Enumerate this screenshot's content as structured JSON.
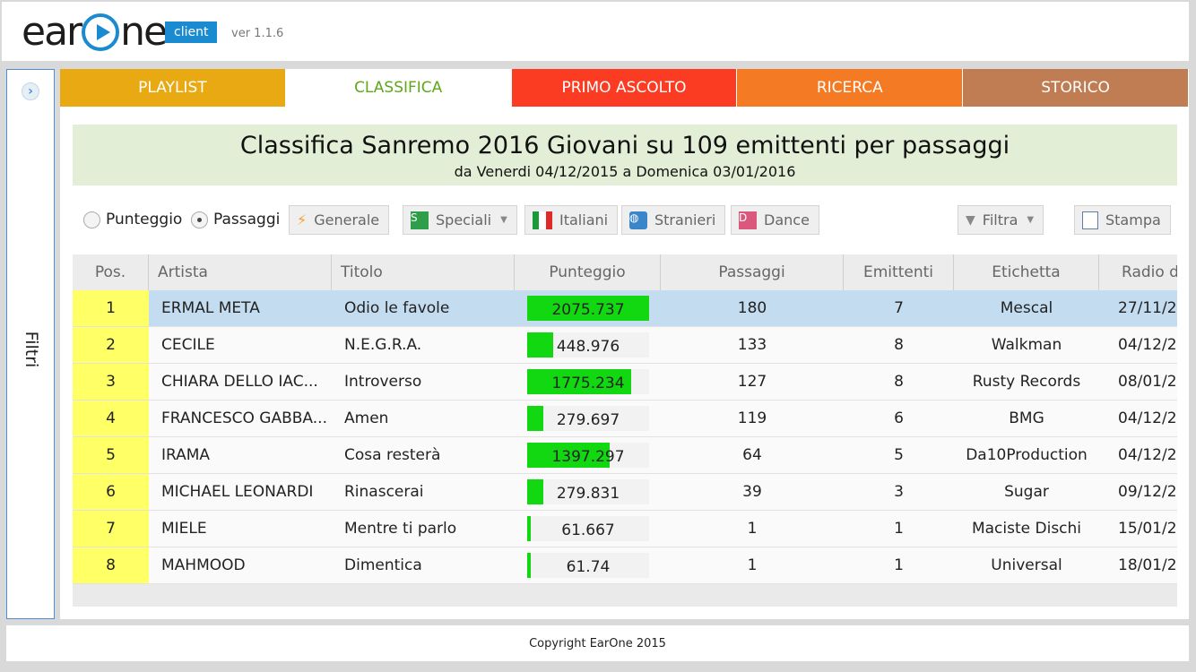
{
  "header": {
    "logo_left": "ear",
    "logo_right": "ne",
    "logo_badge": "client",
    "version": "ver 1.1.6"
  },
  "sidebar": {
    "label": "Filtri",
    "toggle_icon": "chevron-right-icon"
  },
  "tabs": [
    {
      "label": "PLAYLIST",
      "color": "#e8a912"
    },
    {
      "label": "CLASSIFICA",
      "color": "#ffffff",
      "active": true
    },
    {
      "label": "PRIMO ASCOLTO",
      "color": "#fb3b22"
    },
    {
      "label": "RICERCA",
      "color": "#f47a24"
    },
    {
      "label": "STORICO",
      "color": "#c07d53"
    }
  ],
  "title": {
    "main": "Classifica Sanremo 2016 Giovani su 109 emittenti per passaggi",
    "sub": "da Venerdi 04/12/2015 a Domenica 03/01/2016"
  },
  "toolbar": {
    "radio_punteggio": "Punteggio",
    "radio_passaggi": "Passaggi",
    "selected_radio": "Passaggi",
    "generale": "Generale",
    "speciali": "Speciali",
    "italiani": "Italiani",
    "stranieri": "Stranieri",
    "dance": "Dance",
    "filtra": "Filtra",
    "stampa": "Stampa",
    "speciali_badge": "S",
    "dance_badge": "D"
  },
  "table": {
    "columns": [
      "Pos.",
      "Artista",
      "Titolo",
      "Punteggio",
      "Passaggi",
      "Emittenti",
      "Etichetta",
      "Radio d"
    ],
    "rows": [
      {
        "pos": "1",
        "artist": "ERMAL META",
        "title": "Odio le favole",
        "score": "2075.737",
        "score_fraction": 1.0,
        "plays": "180",
        "stations": "7",
        "label": "Mescal",
        "radio_date": "27/11/2",
        "selected": true
      },
      {
        "pos": "2",
        "artist": "CECILE",
        "title": "N.E.G.R.A.",
        "score": "448.976",
        "score_fraction": 0.216,
        "plays": "133",
        "stations": "8",
        "label": "Walkman",
        "radio_date": "04/12/2"
      },
      {
        "pos": "3",
        "artist": "CHIARA DELLO IAC...",
        "title": "Introverso",
        "score": "1775.234",
        "score_fraction": 0.855,
        "plays": "127",
        "stations": "8",
        "label": "Rusty Records",
        "radio_date": "08/01/2"
      },
      {
        "pos": "4",
        "artist": "FRANCESCO GABBA...",
        "title": "Amen",
        "score": "279.697",
        "score_fraction": 0.135,
        "plays": "119",
        "stations": "6",
        "label": "BMG",
        "radio_date": "04/12/2"
      },
      {
        "pos": "5",
        "artist": "IRAMA",
        "title": "Cosa resterà",
        "score": "1397.297",
        "score_fraction": 0.673,
        "plays": "64",
        "stations": "5",
        "label": "Da10Production",
        "radio_date": "04/12/2"
      },
      {
        "pos": "6",
        "artist": "MICHAEL LEONARDI",
        "title": "Rinascerai",
        "score": "279.831",
        "score_fraction": 0.135,
        "plays": "39",
        "stations": "3",
        "label": "Sugar",
        "radio_date": "09/12/2"
      },
      {
        "pos": "7",
        "artist": "MIELE",
        "title": "Mentre ti parlo",
        "score": "61.667",
        "score_fraction": 0.03,
        "plays": "1",
        "stations": "1",
        "label": "Maciste Dischi",
        "radio_date": "15/01/2"
      },
      {
        "pos": "8",
        "artist": "MAHMOOD",
        "title": "Dimentica",
        "score": "61.74",
        "score_fraction": 0.03,
        "plays": "1",
        "stations": "1",
        "label": "Universal",
        "radio_date": "18/01/2"
      }
    ]
  },
  "footer": {
    "copyright": "Copyright EarOne 2015"
  },
  "colors": {
    "accent": "#1a8bd1",
    "bar": "#11d811",
    "pos_highlight": "#ffff66",
    "title_bg": "#e2efd6",
    "selected_row": "#c3dcf0"
  }
}
